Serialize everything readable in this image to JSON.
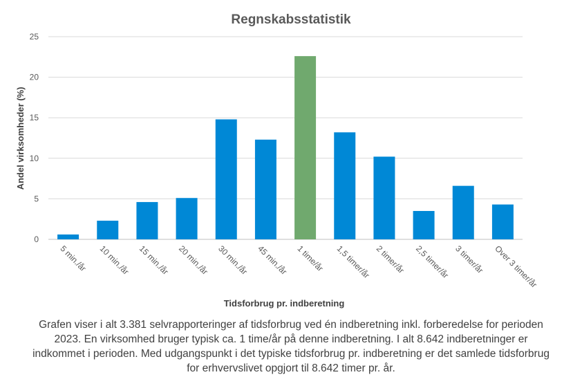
{
  "chart_data": {
    "type": "bar",
    "title": "Regnskabsstatistik",
    "xlabel": "Tidsforbrug pr. indberetning",
    "ylabel": "Andel virksomheder  (%)",
    "ylim": [
      0,
      25
    ],
    "yticks": [
      "0",
      "5",
      "10",
      "15",
      "20",
      "25"
    ],
    "categories": [
      "5 min./år",
      "10 min./år",
      "15 min./år",
      "20 min./år",
      "30 min./år",
      "45 min./år",
      "1 time/år",
      "1,5 timer/år",
      "2 timer/år",
      "2,5 timer/år",
      "3 timer/år",
      "Over 3 timer/år"
    ],
    "values": [
      0.6,
      2.3,
      4.6,
      5.1,
      14.8,
      12.3,
      22.6,
      13.2,
      10.2,
      3.5,
      6.6,
      4.3
    ],
    "highlight_category": "1 time/år",
    "colors": {
      "bar": "#0088D6",
      "highlight": "#70A96E",
      "grid": "#D9D9D9"
    },
    "grid": true,
    "legend": "none"
  },
  "caption": "Grafen viser i alt 3.381 selvrapporteringer af tidsforbrug ved én indberetning inkl. forberedelse for perioden 2023. En virksomhed bruger typisk ca. 1 time/år på denne indberetning.  I alt 8.642 indberetninger er indkommet i perioden. Med udgangspunkt i det typiske tidsforbrug pr. indberetning er det samlede tidsforbrug for erhvervslivet opgjort til 8.642 timer pr. år."
}
